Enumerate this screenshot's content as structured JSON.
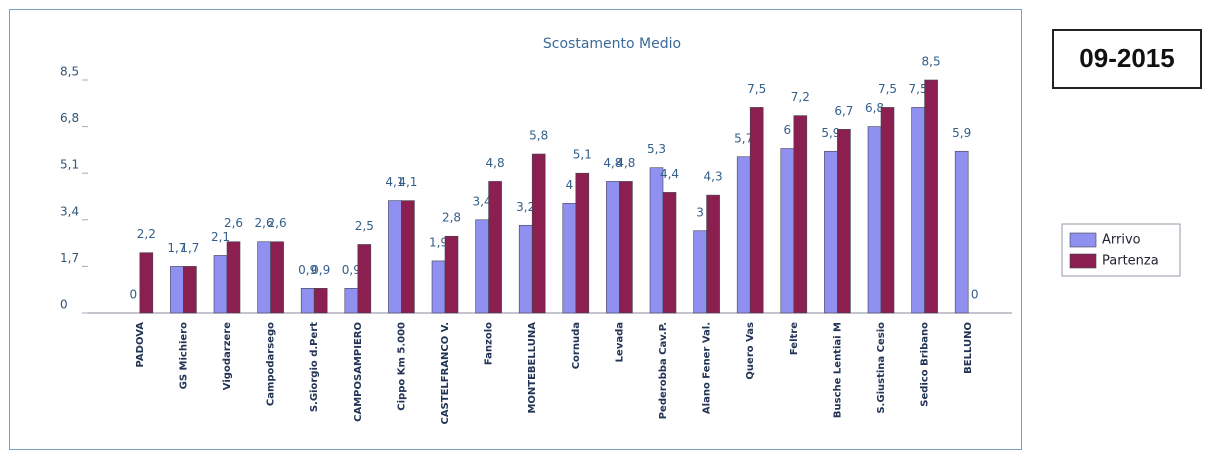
{
  "chart_data": {
    "type": "bar",
    "title": "Scostamento Medio",
    "period": "09-2015",
    "categories": [
      "PADOVA",
      "GS Michiero",
      "Vigodarzere",
      "Campodarsego",
      "S.Giorgio d.Pert",
      "CAMPOSAMPIERO",
      "Cippo Km 5.000",
      "CASTELFRANCO V.",
      "Fanzolo",
      "MONTEBELLUNA",
      "Cornuda",
      "Levada",
      "Pederobba Cav.P.",
      "Alano Fener Val.",
      "Quero Vas",
      "Feltre",
      "Busche Lentiai M",
      "S.Giustina Cesio",
      "Sedico Bribano",
      "BELLUNO"
    ],
    "series": [
      {
        "name": "Arrivo",
        "color": "#9090f0",
        "values": [
          0,
          1.7,
          2.1,
          2.6,
          0.9,
          0.9,
          4.1,
          1.9,
          3.4,
          3.2,
          4,
          4.8,
          5.3,
          3,
          5.7,
          6,
          5.9,
          6.8,
          7.5,
          5.9
        ],
        "value_labels": [
          "0",
          "1,7",
          "2,1",
          "2,6",
          "0,9",
          "0,9",
          "4,1",
          "1,9",
          "3,4",
          "3,2",
          "4",
          "4,8",
          "5,3",
          "3",
          "5,7",
          "6",
          "5,9",
          "6,8",
          "7,5",
          "5,9"
        ]
      },
      {
        "name": "Partenza",
        "color": "#8b1f4f",
        "values": [
          2.2,
          1.7,
          2.6,
          2.6,
          0.9,
          2.5,
          4.1,
          2.8,
          4.8,
          5.8,
          5.1,
          4.8,
          4.4,
          4.3,
          7.5,
          7.2,
          6.7,
          7.5,
          8.5,
          0
        ],
        "value_labels": [
          "2,2",
          "1,7",
          "2,6",
          "2,6",
          "0,9",
          "2,5",
          "4,1",
          "2,8",
          "4,8",
          "5,8",
          "5,1",
          "4,8",
          "4,4",
          "4,3",
          "7,5",
          "7,2",
          "6,7",
          "7,5",
          "8,5",
          "0"
        ]
      }
    ],
    "ylim": [
      0,
      8.5
    ],
    "yticks": [
      0,
      {
        "value": 1.7,
        "label": "1,7"
      },
      {
        "value": 3.4,
        "label": "3,4"
      },
      {
        "value": 5.1,
        "label": "5,1"
      },
      {
        "value": 6.8,
        "label": "6,8"
      },
      {
        "value": 8.5,
        "label": "8,5"
      }
    ],
    "grid": false,
    "legend": "right"
  }
}
